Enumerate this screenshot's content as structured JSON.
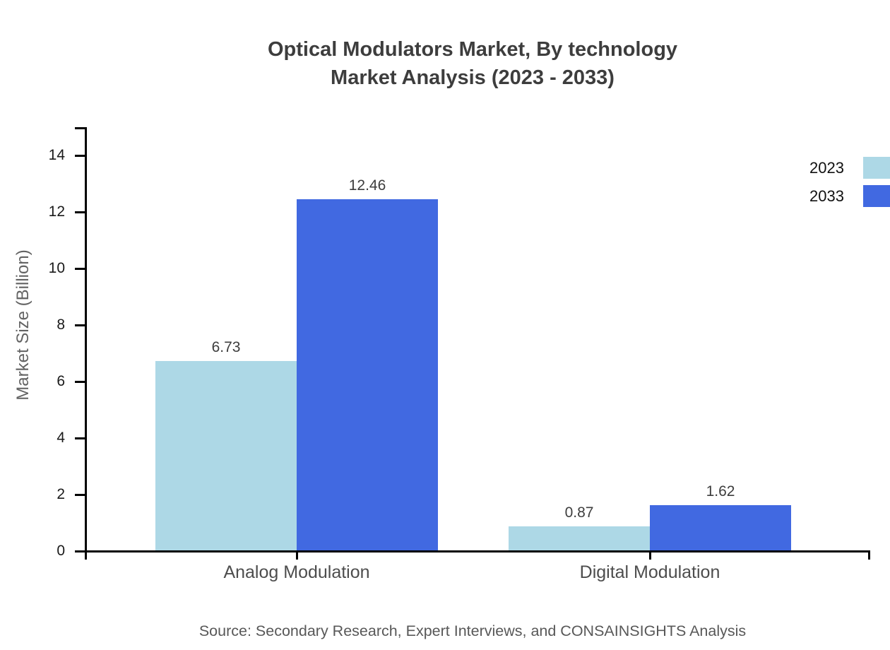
{
  "title": {
    "line1": "Optical Modulators Market, By technology",
    "line2": "Market Analysis (2023 - 2033)"
  },
  "source": {
    "text": "Source: Secondary Research, Expert Interviews, and CONSAINSIGHTS Analysis"
  },
  "chart_data": {
    "type": "bar",
    "title": "Optical Modulators Market, By technology Market Analysis (2023 - 2033)",
    "categories": [
      "Analog Modulation",
      "Digital Modulation"
    ],
    "series": [
      {
        "name": "2023",
        "color": "#ADD8E6",
        "values": [
          6.73,
          0.87
        ]
      },
      {
        "name": "2033",
        "color": "#4169E1",
        "values": [
          12.46,
          1.62
        ]
      }
    ],
    "xlabel": "",
    "ylabel": "Market Size (Billion)",
    "ylim": [
      0,
      15
    ],
    "yticks": [
      0,
      2,
      4,
      6,
      8,
      10,
      12,
      14
    ],
    "grid": false,
    "legend_position": "top-right",
    "value_labels": true,
    "value_label_decimals": 2,
    "axis_color": "#000000"
  }
}
